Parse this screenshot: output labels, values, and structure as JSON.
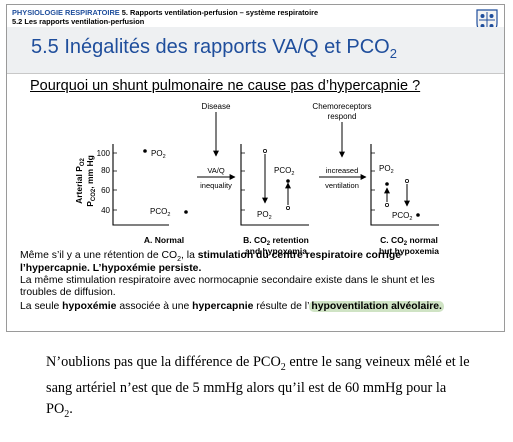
{
  "header": {
    "course": "PHYSIOLOGIE RESPIRATOIRE",
    "chapter": "5. Rapports ventilation-perfusion – système respiratoire",
    "section": "5.2 Les rapports ventilation-perfusion"
  },
  "slide_title": {
    "text": "5.5 Inégalités des rapports VA/Q et PCO",
    "sub": "2"
  },
  "question": "Pourquoi un shunt pulmonaire ne cause pas d’hypercapnie ?",
  "diagram": {
    "top_labels": {
      "disease": "Disease",
      "chemoreceptors": "Chemoreceptors",
      "respond": "respond"
    },
    "y_axis": {
      "label_po2": "Arterial P",
      "label_po2_sub": "O2",
      "label_pco2": "P",
      "label_pco2_sub": "CO2",
      "unit": ", mm Hg",
      "ticks": [
        "100",
        "80",
        "60",
        "40"
      ]
    },
    "arrow1": {
      "label": "VA/Q",
      "label2": "inequality"
    },
    "arrow2": {
      "label": "increased",
      "label2": "ventilation"
    },
    "panels": [
      {
        "caption": "A. Normal",
        "caption2": "",
        "po2": "PO",
        "pco2": "PCO"
      },
      {
        "caption": "B. CO",
        "caption_sub": "2",
        "caption_rest": " retention",
        "caption2": "and hypoxemia",
        "po2": "PO",
        "pco2": "PCO"
      },
      {
        "caption": "C. CO",
        "caption_sub": "2",
        "caption_rest": " normal",
        "caption2": "but hypoxemia",
        "po2": "PO",
        "pco2": "PCO"
      }
    ],
    "sub2": "2"
  },
  "body": {
    "line1_a": "Même s’il y a une rétention de CO",
    "line1_sub": "2",
    "line1_b": ", la ",
    "line1_bold": "stimulation du centre respiratoire corrige",
    "line2_bold": "l’hypercapnie.  L’hypoxémie persiste.",
    "line3": "La même stimulation respiratoire avec normocapnie secondaire existe dans le shunt et les",
    "line4": "troubles de diffusion.",
    "line5_a": "La seule ",
    "line5_bold1": "hypoxémie",
    "line5_b": " associée à une ",
    "line5_bold2": "hypercapnie",
    "line5_c": " résulte de l’",
    "line5_hl": "hypoventilation",
    "line5_d": " ",
    "line5_hl2": "alvéolaire."
  },
  "note": {
    "a": "N’oublions pas que la différence de PCO",
    "sub": "2",
    "b": " entre le sang veineux mêlé et le sang artériel n’est que de 5 mmHg alors qu’il est de 60 mmHg pour la PO",
    "sub2": "2",
    "c": "."
  }
}
